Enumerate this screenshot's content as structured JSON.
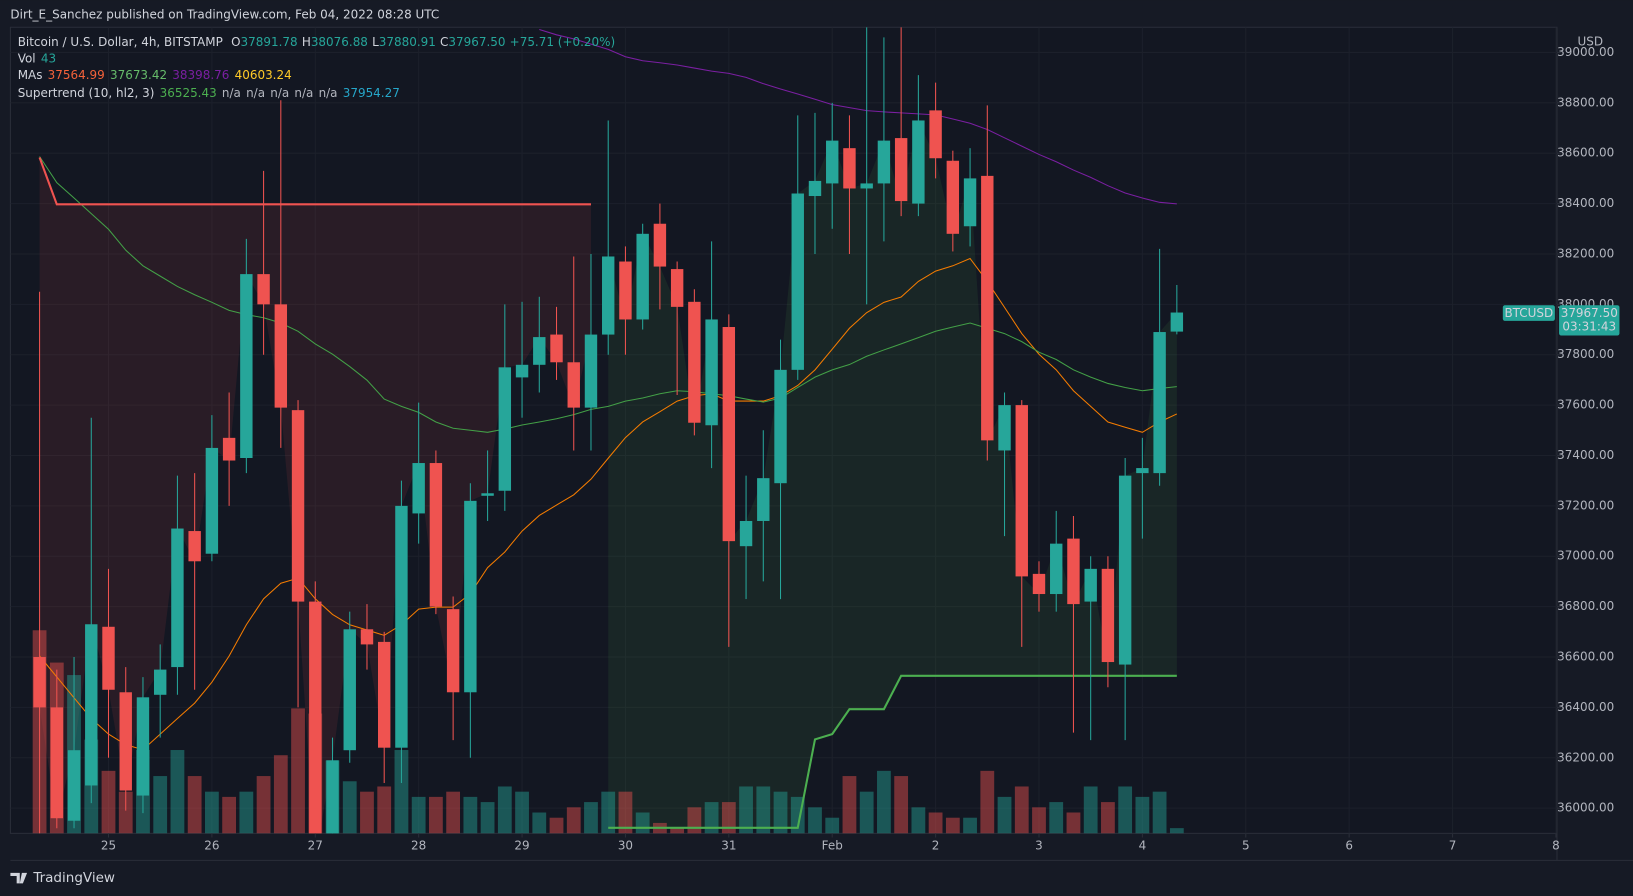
{
  "chart_data": {
    "type": "candlestick",
    "publisher": "Dirt_E_Sanchez published on TradingView.com, Feb 04, 2022 08:28 UTC",
    "title": "Bitcoin / U.S. Dollar, 4h, BITSTAMP",
    "ohlc_legend": [
      {
        "key": "O",
        "value": "37891.78"
      },
      {
        "key": "H",
        "value": "38076.88"
      },
      {
        "key": "L",
        "value": "37880.91"
      },
      {
        "key": "C",
        "value": "37967.50"
      }
    ],
    "change": "+75.71 (+0.20%)",
    "legend_value_color": "#26a69a",
    "volume_label": "Vol",
    "volume_value": "43",
    "ma_label": "MAs",
    "ma_values": [
      "37564.99",
      "37673.42",
      "38398.76",
      "40603.24"
    ],
    "ma_value_colors": [
      "#f4623a",
      "#66bb6a",
      "#7b1fa2",
      "#ffca28"
    ],
    "supertrend_label": "Supertrend (10, hl2, 3)",
    "supertrend_values": [
      "36525.43",
      "n/a",
      "n/a",
      "n/a",
      "n/a",
      "n/a",
      "37954.27"
    ],
    "supertrend_value_colors": [
      "#4caf50",
      "#b2b5be",
      "#b2b5be",
      "#b2b5be",
      "#b2b5be",
      "#b2b5be",
      "#26a6c9"
    ],
    "currency": "USD",
    "symbol": "BTCUSD",
    "last_price": "37967.50",
    "countdown": "03:31:43",
    "brand": "TradingView",
    "up_color": "#26a69a",
    "down_color": "#ef5350",
    "grid": true,
    "categories": [
      null,
      null,
      null,
      null,
      "25",
      null,
      null,
      null,
      null,
      null,
      "26",
      null,
      null,
      null,
      null,
      null,
      "27",
      null,
      null,
      null,
      null,
      null,
      "28",
      null,
      null,
      null,
      null,
      null,
      "29",
      null,
      null,
      null,
      null,
      null,
      "30",
      null,
      null,
      null,
      null,
      null,
      "31",
      null,
      null,
      null,
      null,
      null,
      "Feb",
      null,
      null,
      null,
      null,
      null,
      "2",
      null,
      null,
      null,
      null,
      null,
      "3",
      null,
      null,
      null,
      null,
      null,
      "4",
      null,
      null,
      null,
      null,
      null,
      "5",
      null,
      null,
      null,
      null,
      null,
      "6",
      null,
      null,
      null,
      null,
      null,
      "7",
      null,
      null,
      null,
      null,
      null,
      "8"
    ],
    "open": [
      36600,
      36400,
      35950,
      36090,
      36720,
      36460,
      36050,
      36450,
      36560,
      37100,
      37010,
      37470,
      37390,
      38120,
      38000,
      37580,
      36820,
      35800,
      36230,
      36710,
      36660,
      36240,
      37170,
      37370,
      36790,
      36460,
      37240,
      37260,
      37710,
      37760,
      37880,
      37770,
      37590,
      37880,
      38170,
      37940,
      38320,
      38140,
      38010,
      37520,
      37910,
      37040,
      37140,
      37290,
      37740,
      38430,
      38480,
      38620,
      38460,
      38480,
      38660,
      38400,
      38770,
      38570,
      38310,
      38510,
      37420,
      37600,
      36930,
      36850,
      37070,
      36820,
      36950,
      36570,
      37330,
      37330,
      37891.78,
      null,
      null,
      null,
      null,
      null,
      null,
      null,
      null,
      null,
      null,
      null,
      null,
      null,
      null,
      null,
      null,
      null,
      null,
      null,
      null,
      null,
      null
    ],
    "high": [
      38050,
      36550,
      36600,
      37550,
      36950,
      36560,
      36520,
      36650,
      37320,
      37330,
      37560,
      37650,
      38260,
      38530,
      38810,
      37620,
      36900,
      36280,
      36780,
      36810,
      36700,
      37300,
      37610,
      37420,
      36840,
      37290,
      37420,
      38000,
      38010,
      38030,
      37990,
      38190,
      38200,
      38730,
      38230,
      38320,
      38400,
      38170,
      38060,
      38250,
      37960,
      37320,
      37500,
      37860,
      38750,
      38760,
      38800,
      38750,
      39100,
      39060,
      39100,
      38910,
      38880,
      38610,
      38620,
      38790,
      37650,
      37620,
      36980,
      37180,
      37160,
      37000,
      37000,
      37390,
      37470,
      38220,
      38076.88,
      null,
      null,
      null,
      null,
      null,
      null,
      null,
      null,
      null,
      null,
      null,
      null,
      null,
      null,
      null,
      null,
      null,
      null,
      null,
      null,
      null,
      null
    ],
    "low": [
      35900,
      35920,
      35920,
      36020,
      36200,
      35990,
      35980,
      36280,
      36450,
      36470,
      36980,
      37200,
      37330,
      37800,
      37430,
      36400,
      35700,
      35700,
      36180,
      36550,
      36100,
      36100,
      37050,
      36770,
      36270,
      36200,
      37140,
      37180,
      37550,
      37650,
      37700,
      37420,
      37420,
      37800,
      37800,
      37900,
      37980,
      37640,
      37480,
      37350,
      36640,
      36830,
      36900,
      36830,
      37700,
      38200,
      38300,
      38200,
      38000,
      38250,
      38350,
      38350,
      38500,
      38210,
      38230,
      37380,
      37080,
      36640,
      36780,
      36780,
      36300,
      36270,
      36480,
      36270,
      37070,
      37280,
      37880.91,
      null,
      null,
      null,
      null,
      null,
      null,
      null,
      null,
      null,
      null,
      null,
      null,
      null,
      null,
      null,
      null,
      null,
      null,
      null,
      null,
      null,
      null
    ],
    "close": [
      36400,
      35960,
      36230,
      36730,
      36470,
      36070,
      36440,
      36550,
      37110,
      36980,
      37430,
      37380,
      38120,
      38000,
      37590,
      36820,
      35800,
      36190,
      36710,
      36650,
      36240,
      37200,
      37370,
      36800,
      36460,
      37220,
      37250,
      37750,
      37760,
      37870,
      37770,
      37590,
      37880,
      38190,
      37940,
      38280,
      38150,
      37990,
      37530,
      37940,
      37060,
      37140,
      37310,
      37740,
      38440,
      38490,
      38650,
      38460,
      38480,
      38650,
      38410,
      38730,
      38580,
      38280,
      38500,
      37460,
      37600,
      36920,
      36850,
      37050,
      36810,
      36950,
      36580,
      37320,
      37350,
      37890,
      37967.5,
      null,
      null,
      null,
      null,
      null,
      null,
      null,
      null,
      null,
      null,
      null,
      null,
      null,
      null,
      null,
      null,
      null,
      null,
      null,
      null,
      null,
      null
    ],
    "volume": [
      1677,
      1410,
      1307,
      774,
      516,
      344,
      688,
      473,
      688,
      473,
      344,
      301,
      344,
      473,
      645,
      1032,
      989,
      602,
      430,
      344,
      387,
      688,
      301,
      301,
      344,
      301,
      258,
      387,
      344,
      172,
      129,
      215,
      258,
      344,
      344,
      172,
      86,
      43,
      215,
      258,
      258,
      387,
      387,
      344,
      301,
      215,
      129,
      473,
      344,
      516,
      473,
      215,
      172,
      129,
      129,
      516,
      301,
      387,
      215,
      258,
      172,
      387,
      258,
      387,
      301,
      344,
      43,
      null,
      null,
      null,
      null,
      null,
      null,
      null,
      null,
      null,
      null,
      null,
      null,
      null,
      null,
      null,
      null,
      null,
      null,
      null,
      null,
      null,
      null
    ],
    "lines": [
      {
        "color": "#f57c00",
        "values": [
          36604,
          36521,
          36438,
          36356,
          36294,
          36252,
          36232,
          36294,
          36356,
          36417,
          36500,
          36604,
          36728,
          36831,
          36893,
          36913,
          36831,
          36769,
          36728,
          36707,
          36686,
          36728,
          36790,
          36798,
          36798,
          36851,
          36955,
          37017,
          37100,
          37162,
          37203,
          37244,
          37306,
          37389,
          37471,
          37533,
          37574,
          37616,
          37637,
          37645,
          37616,
          37616,
          37616,
          37637,
          37678,
          37740,
          37822,
          37905,
          37967,
          38008,
          38029,
          38091,
          38132,
          38153,
          38182,
          38091,
          37988,
          37884,
          37802,
          37740,
          37657,
          37595,
          37533,
          37512,
          37492,
          37533,
          37564.99,
          null,
          null,
          null,
          null,
          null,
          null,
          null,
          null,
          null,
          null,
          null,
          null,
          null,
          null,
          null,
          null,
          null,
          null,
          null,
          null,
          null,
          null
        ]
      },
      {
        "color": "#43a047",
        "values": [
          38587,
          38483,
          38422,
          38360,
          38298,
          38215,
          38153,
          38112,
          38071,
          38038,
          38008,
          37976,
          37959,
          37947,
          37926,
          37893,
          37843,
          37802,
          37753,
          37699,
          37624,
          37595,
          37571,
          37533,
          37508,
          37500,
          37492,
          37505,
          37521,
          37533,
          37546,
          37562,
          37583,
          37595,
          37616,
          37628,
          37645,
          37657,
          37653,
          37645,
          37637,
          37624,
          37612,
          37628,
          37670,
          37711,
          37740,
          37761,
          37794,
          37819,
          37843,
          37868,
          37893,
          37910,
          37926,
          37905,
          37884,
          37852,
          37810,
          37781,
          37740,
          37711,
          37686,
          37670,
          37657,
          37666,
          37673.42,
          null,
          null,
          null,
          null,
          null,
          null,
          null,
          null,
          null,
          null,
          null,
          null,
          null,
          null,
          null,
          null,
          null,
          null,
          null,
          null,
          null,
          null
        ]
      },
      {
        "color": "#7b1fa2",
        "values": [
          null,
          null,
          null,
          null,
          null,
          null,
          null,
          null,
          null,
          null,
          null,
          null,
          null,
          null,
          null,
          null,
          null,
          null,
          null,
          null,
          null,
          null,
          null,
          null,
          null,
          null,
          null,
          null,
          null,
          39091,
          39070,
          39054,
          39033,
          39012,
          38983,
          38967,
          38959,
          38950,
          38938,
          38926,
          38917,
          38901,
          38876,
          38855,
          38835,
          38814,
          38793,
          38781,
          38769,
          38764,
          38760,
          38756,
          38752,
          38736,
          38719,
          38694,
          38661,
          38628,
          38595,
          38566,
          38533,
          38504,
          38471,
          38442,
          38422,
          38405,
          38398.76,
          null,
          null,
          null,
          null,
          null,
          null,
          null,
          null,
          null,
          null,
          null,
          null,
          null,
          null,
          null,
          null,
          null,
          null,
          null,
          null,
          null,
          null
        ]
      }
    ],
    "supertrend": [
      {
        "color": "#ef5350",
        "values": [
          38583,
          38397,
          38397,
          38397,
          38397,
          38397,
          38397,
          38397,
          38397,
          38397,
          38397,
          38397,
          38397,
          38397,
          38397,
          38397,
          38397,
          38397,
          38397,
          38397,
          38397,
          38397,
          38397,
          38397,
          38397,
          38397,
          38397,
          38397,
          38397,
          38397,
          38397,
          38397,
          38397,
          null,
          null,
          null,
          null,
          null,
          null,
          null,
          null,
          null,
          null,
          null,
          null,
          null,
          null,
          null,
          null,
          null,
          null,
          null,
          null,
          null,
          null,
          null,
          null,
          null,
          null,
          null,
          null,
          null,
          null,
          null,
          null,
          null,
          null,
          null,
          null,
          null,
          null,
          null,
          null,
          null,
          null,
          null,
          null,
          null,
          null,
          null,
          null,
          null,
          null,
          null,
          null,
          null,
          null,
          null,
          null
        ]
      },
      {
        "color": "#4caf50",
        "values": [
          null,
          null,
          null,
          null,
          null,
          null,
          null,
          null,
          null,
          null,
          null,
          null,
          null,
          null,
          null,
          null,
          null,
          null,
          null,
          null,
          null,
          null,
          null,
          null,
          null,
          null,
          null,
          null,
          null,
          null,
          null,
          null,
          null,
          35922,
          35922,
          35922,
          35922,
          35922,
          35922,
          35922,
          35922,
          35922,
          35922,
          35922,
          35922,
          36273,
          36294,
          36393,
          36393,
          36393,
          36525.43,
          36525.43,
          36525.43,
          36525.43,
          36525.43,
          36525.43,
          36525.43,
          36525.43,
          36525.43,
          36525.43,
          36525.43,
          36525.43,
          36525.43,
          36525.43,
          36525.43,
          36525.43,
          36525.43,
          null,
          null,
          null,
          null,
          null,
          null,
          null,
          null,
          null,
          null,
          null,
          null,
          null,
          null,
          null,
          null,
          null,
          null,
          null,
          null,
          null,
          null
        ]
      }
    ],
    "ylim": [
      35900,
      39100
    ],
    "yticks": [
      {
        "value": 36000,
        "label": "36000.00"
      },
      {
        "value": 36200,
        "label": "36200.00"
      },
      {
        "value": 36400,
        "label": "36400.00"
      },
      {
        "value": 36600,
        "label": "36600.00"
      },
      {
        "value": 36800,
        "label": "36800.00"
      },
      {
        "value": 37000,
        "label": "37000.00"
      },
      {
        "value": 37200,
        "label": "37200.00"
      },
      {
        "value": 37400,
        "label": "37400.00"
      },
      {
        "value": 37600,
        "label": "37600.00"
      },
      {
        "value": 37800,
        "label": "37800.00"
      },
      {
        "value": 38000,
        "label": "38000.00"
      },
      {
        "value": 38200,
        "label": "38200.00"
      },
      {
        "value": 38400,
        "label": "38400.00"
      },
      {
        "value": 38600,
        "label": "38600.00"
      },
      {
        "value": 38800,
        "label": "38800.00"
      },
      {
        "value": 39000,
        "label": "39000.00"
      }
    ]
  }
}
